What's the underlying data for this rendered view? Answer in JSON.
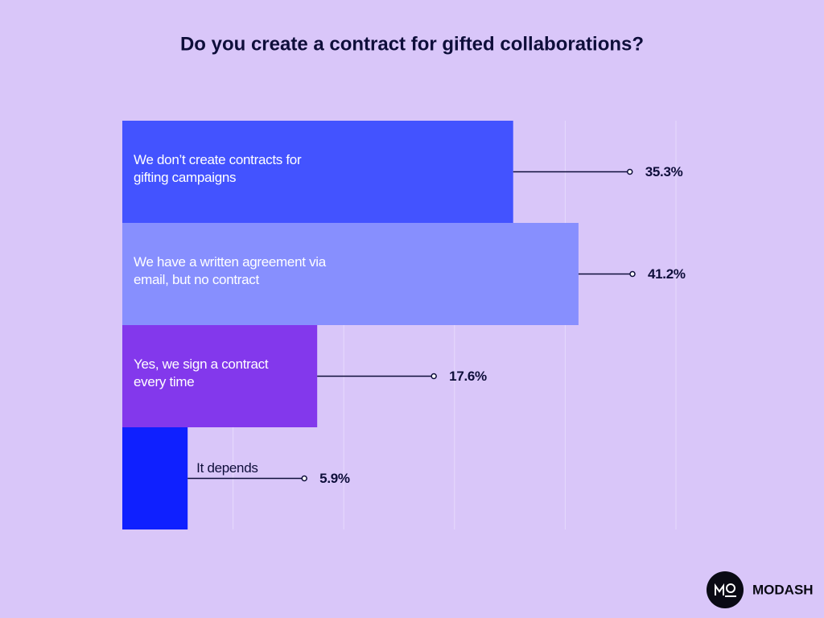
{
  "chart_data": {
    "type": "bar",
    "orientation": "horizontal",
    "title": "Do you create a contract for gifted collaborations?",
    "categories": [
      "We don’t create contracts for gifting campaigns",
      "We have a written agreement via email, but no contract",
      "Yes, we sign a contract every time",
      "It depends"
    ],
    "values": [
      35.3,
      41.2,
      17.6,
      5.9
    ],
    "value_labels": [
      "35.3%",
      "41.2%",
      "17.6%",
      "5.9%"
    ],
    "colors": [
      "#4353ff",
      "#878ffe",
      "#8338ec",
      "#0f20ff"
    ],
    "xlim": [
      0,
      50
    ],
    "xticks": [
      10,
      20,
      30,
      40,
      50
    ],
    "grid": true
  },
  "brand": "MODASH"
}
